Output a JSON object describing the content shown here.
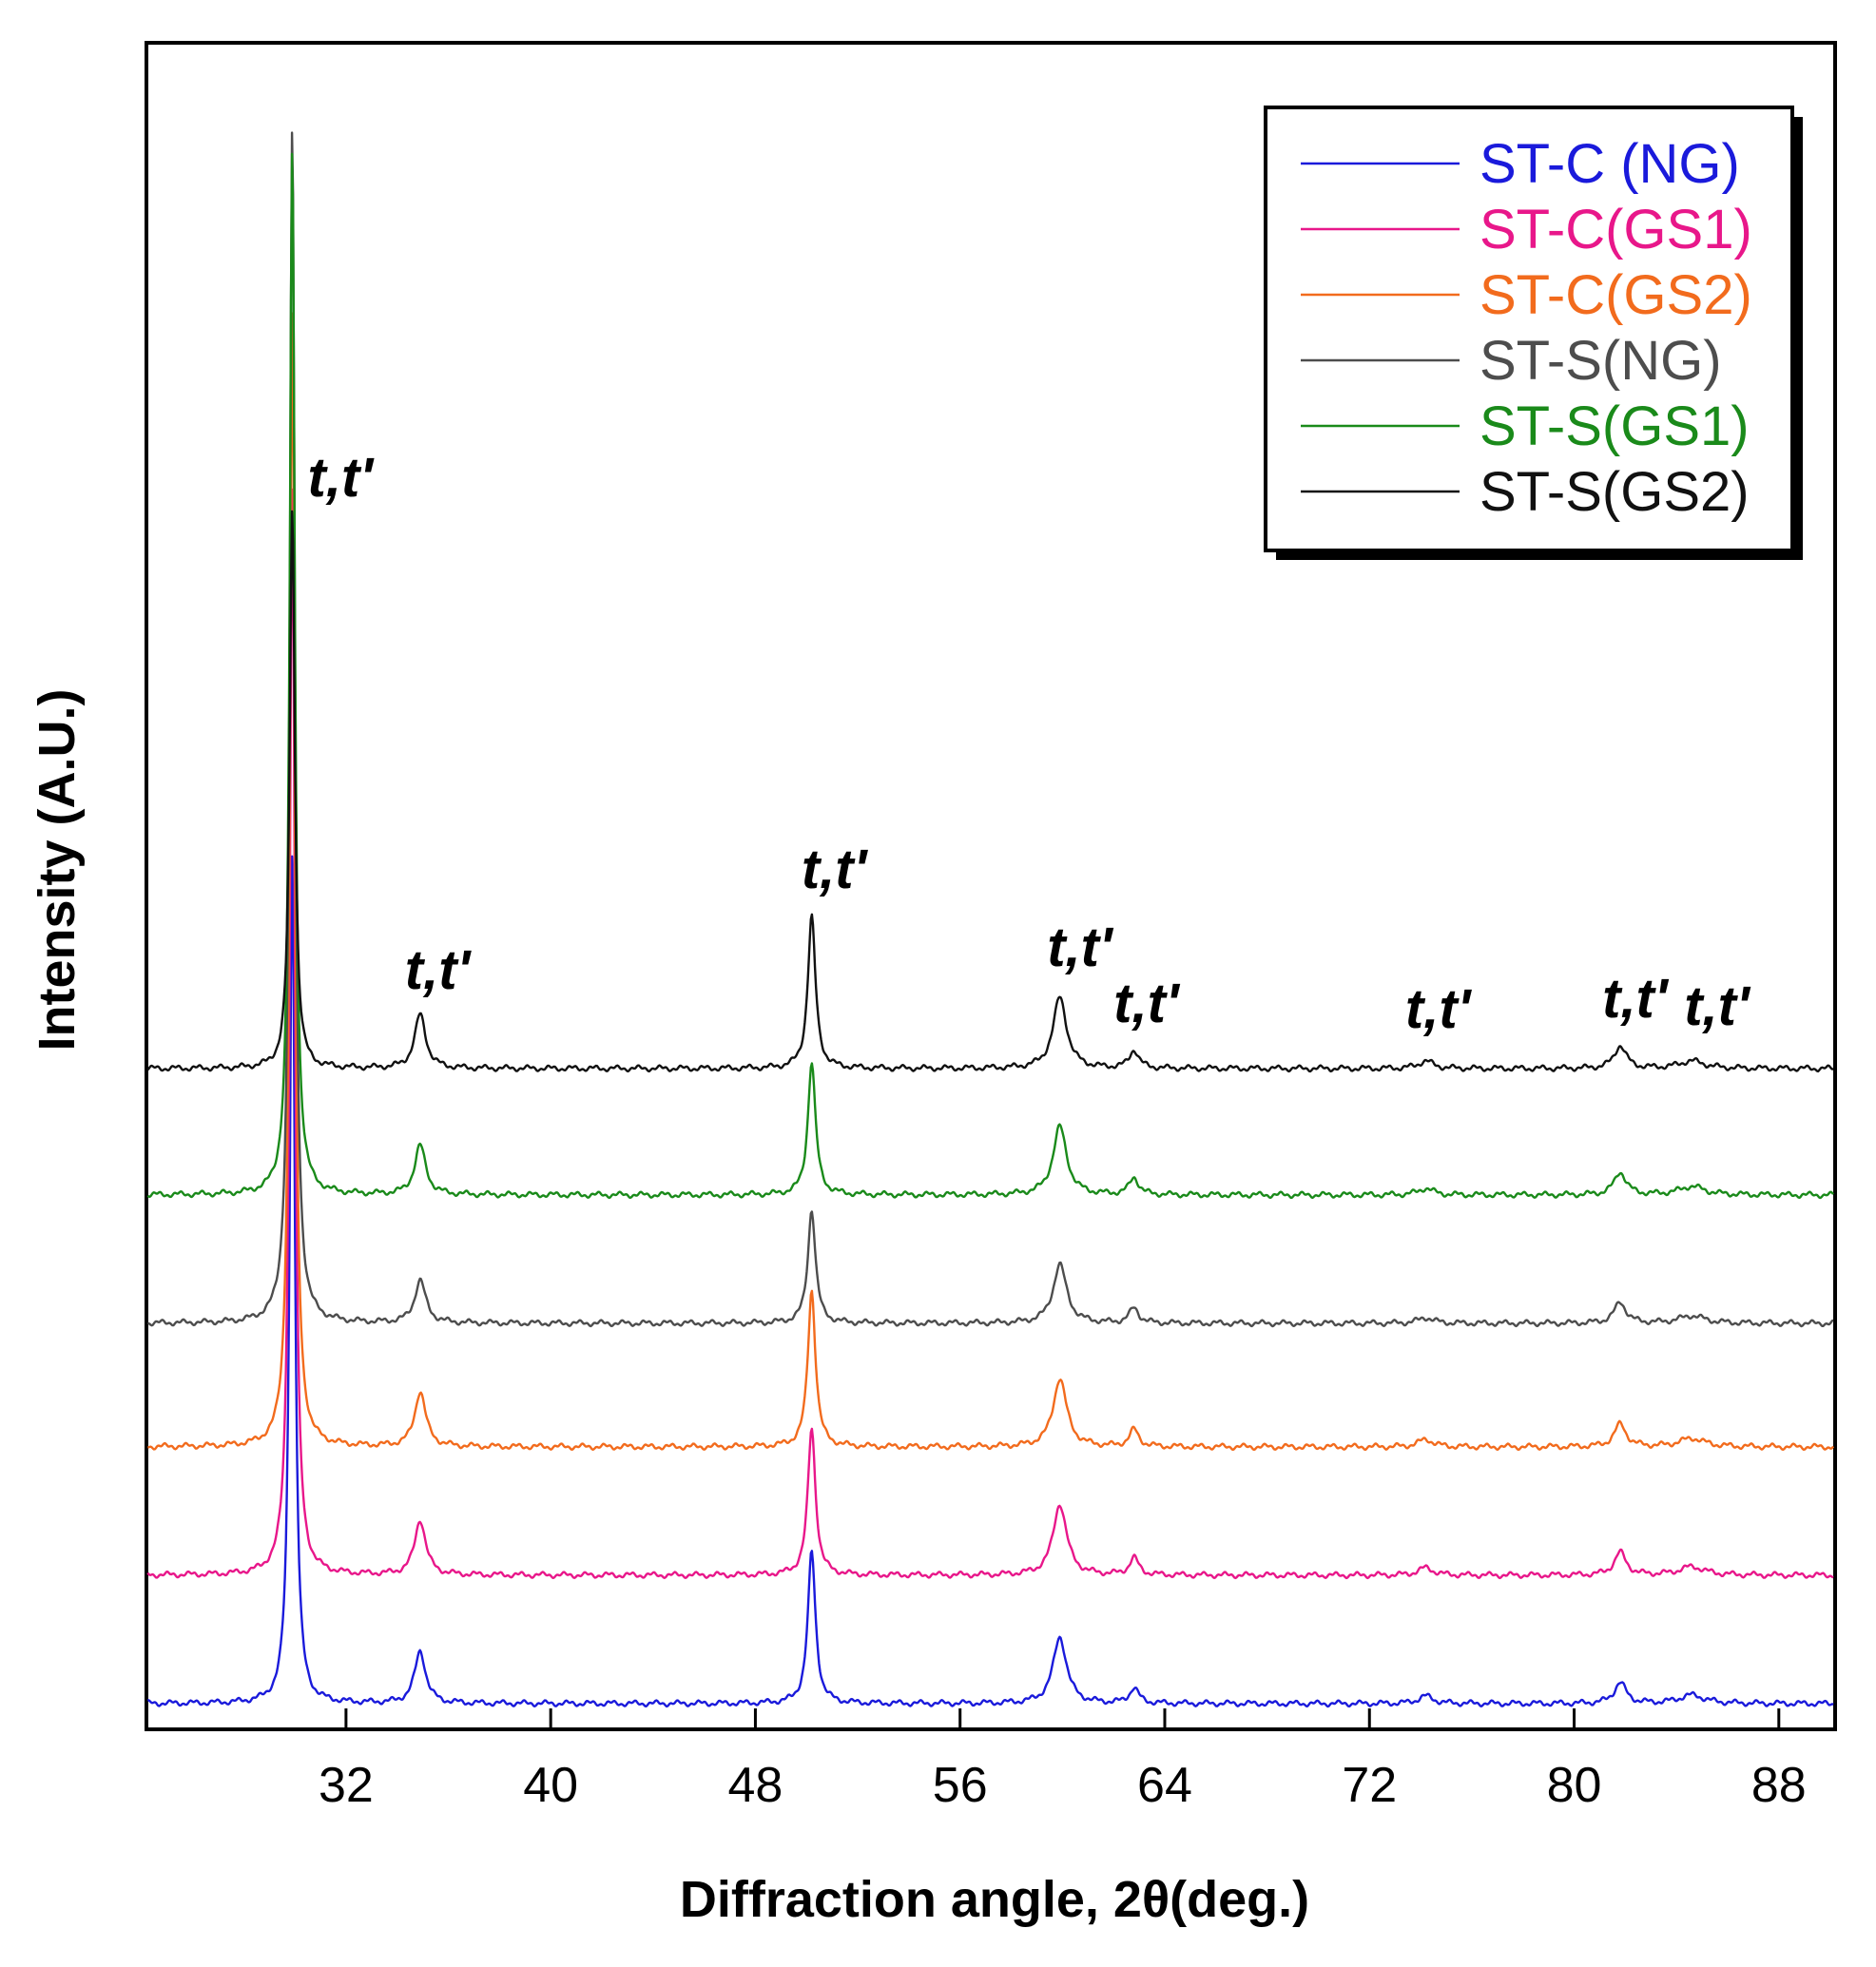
{
  "chart_data": {
    "type": "line",
    "title": "",
    "xlabel": "Diffraction angle, 2θ(deg.)",
    "ylabel": "Intensity (A.U.)",
    "xlim": [
      24.2,
      90.2
    ],
    "x_ticks": [
      32,
      40,
      48,
      56,
      64,
      72,
      80,
      88
    ],
    "x_tick_labels": [
      "32",
      "40",
      "48",
      "56",
      "64",
      "72",
      "80",
      "88"
    ],
    "y_ticks_shown": false,
    "legend_position": "top-right",
    "series_offset_note": "stacked with vertical offsets",
    "peaks": [
      {
        "pos": 29.9,
        "width": 0.12
      },
      {
        "pos": 34.9,
        "width": 0.26
      },
      {
        "pos": 50.2,
        "width": 0.18
      },
      {
        "pos": 59.9,
        "width": 0.32
      },
      {
        "pos": 62.8,
        "width": 0.22
      },
      {
        "pos": 74.2,
        "width": 0.35
      },
      {
        "pos": 81.8,
        "width": 0.28
      },
      {
        "pos": 84.6,
        "width": 0.6
      }
    ],
    "series": [
      {
        "name": "ST-C (NG)",
        "color": "#1a1adb",
        "offset": 0,
        "values": [
          900,
          55,
          160,
          70,
          16,
          8,
          22,
          9
        ]
      },
      {
        "name": "ST-C(GS1)",
        "color": "#e8178a",
        "offset": 135,
        "values": [
          1150,
          58,
          155,
          75,
          18,
          8,
          24,
          9
        ]
      },
      {
        "name": "ST-C(GS2)",
        "color": "#f26b1d",
        "offset": 270,
        "values": [
          1200,
          58,
          165,
          72,
          18,
          8,
          24,
          9
        ]
      },
      {
        "name": "ST-S(NG)",
        "color": "#4d4d4d",
        "offset": 400,
        "values": [
          1260,
          45,
          120,
          62,
          16,
          6,
          22,
          8
        ]
      },
      {
        "name": "ST-S(GS1)",
        "color": "#1a8a1a",
        "offset": 535,
        "values": [
          1100,
          52,
          140,
          72,
          18,
          7,
          24,
          9
        ]
      },
      {
        "name": "ST-S(GS2)",
        "color": "#111111",
        "offset": 668,
        "values": [
          590,
          57,
          160,
          75,
          19,
          8,
          24,
          8
        ]
      }
    ],
    "annotations": [
      {
        "text": "t,t'",
        "x": 30.5,
        "y": 1270
      },
      {
        "text": "t,t'",
        "x": 34.3,
        "y": 752
      },
      {
        "text": "t,t'",
        "x": 49.8,
        "y": 858
      },
      {
        "text": "t,t'",
        "x": 59.4,
        "y": 776
      },
      {
        "text": "t,t'",
        "x": 62.0,
        "y": 717
      },
      {
        "text": "t,t'",
        "x": 73.4,
        "y": 711
      },
      {
        "text": "t,t'",
        "x": 81.1,
        "y": 722
      },
      {
        "text": "t,t'",
        "x": 84.3,
        "y": 714
      }
    ]
  }
}
